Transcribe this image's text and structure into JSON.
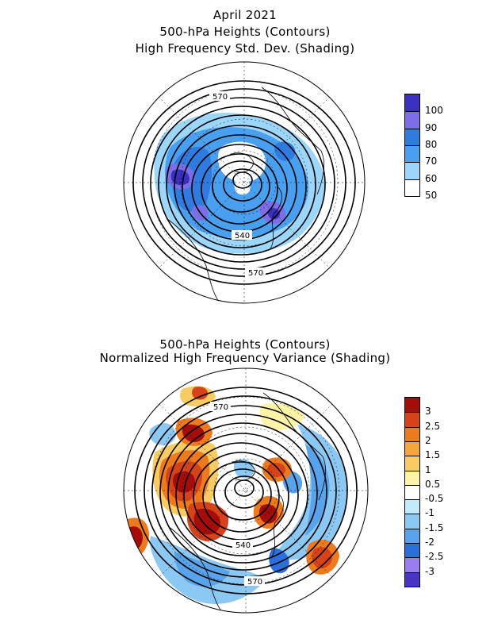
{
  "top": {
    "title_lines": [
      "April 2021",
      "500-hPa Heights (Contours)",
      "High Frequency Std. Dev. (Shading)"
    ],
    "contour_labels": [
      "570",
      "540",
      "570"
    ],
    "legend": {
      "labels": [
        "100",
        "90",
        "80",
        "70",
        "60",
        "50"
      ],
      "colors": [
        "#3a2fbf",
        "#7d6de6",
        "#2f7be0",
        "#4aa0f0",
        "#9dd6fb",
        "#ffffff"
      ]
    }
  },
  "bottom": {
    "title_lines": [
      "500-hPa Heights (Contours)",
      "Normalized High Frequency Variance (Shading)"
    ],
    "contour_labels": [
      "570",
      "540",
      "570"
    ],
    "legend": {
      "labels": [
        "3",
        "2.5",
        "2",
        "1.5",
        "1",
        "0.5",
        "-0.5",
        "-1",
        "-1.5",
        "-2",
        "-2.5",
        "-3"
      ],
      "colors": [
        "#a40d0a",
        "#d6431a",
        "#ee7a1e",
        "#f3a73a",
        "#f8cc62",
        "#fff3a8",
        "#ffffff",
        "#c3ecfb",
        "#8cc8f4",
        "#58a4ec",
        "#2a6fdc",
        "#9a7ef0",
        "#4a34c4"
      ]
    }
  }
}
